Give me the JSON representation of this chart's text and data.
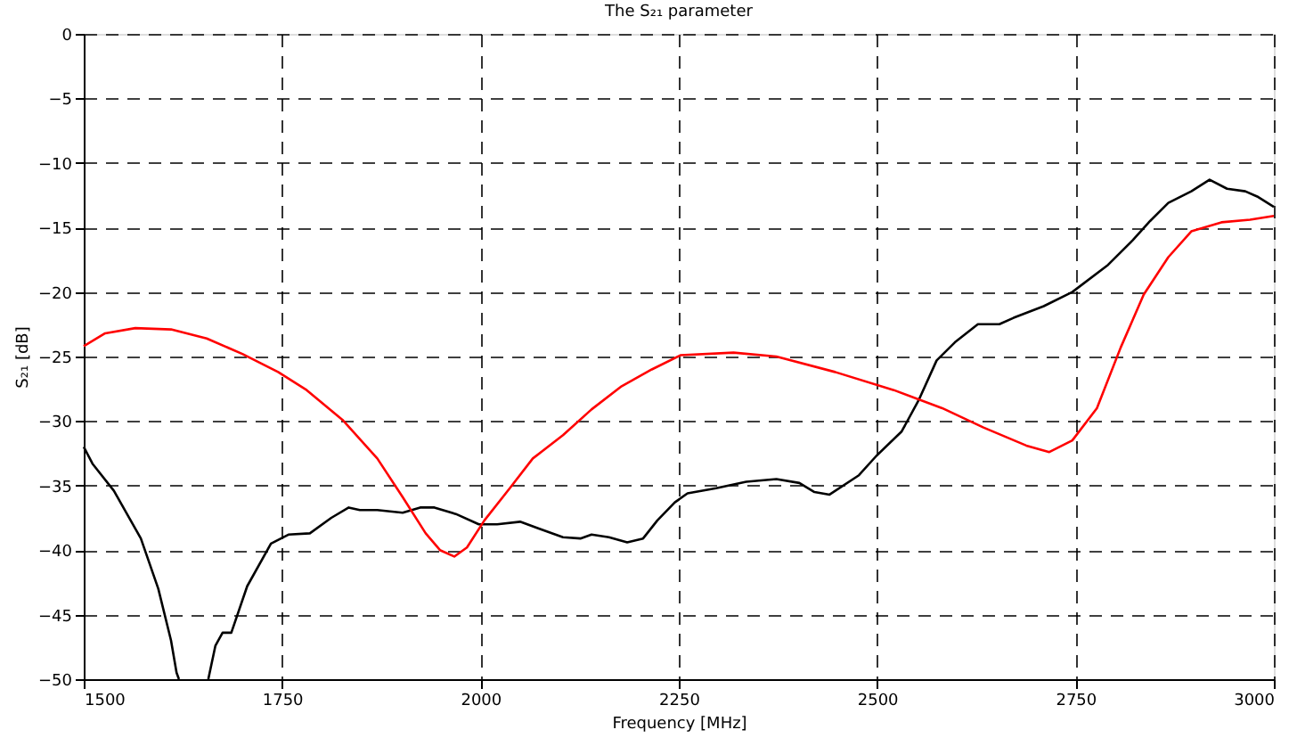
{
  "chart_data": {
    "type": "line",
    "title": "The S₂₁ parameter",
    "xlabel": "Frequency [MHz]",
    "ylabel": "S₂₁ [dB]",
    "xlim": [
      1500,
      3000
    ],
    "xticks": [
      1500,
      1750,
      2000,
      2250,
      2500,
      2750,
      3000
    ],
    "ylim": [
      -50,
      0
    ],
    "yticks": [
      -50,
      -45,
      -40,
      -35,
      -30,
      -25,
      -20,
      -15,
      -10,
      -5,
      0
    ],
    "grid": true,
    "line_style": "solid",
    "marker": "none",
    "series": [
      {
        "color": "#000000",
        "x": [
          1500,
          1511,
          1538,
          1572,
          1594,
          1610,
          1617,
          1620,
          1640,
          1657,
          1666,
          1675,
          1686,
          1706,
          1736,
          1758,
          1785,
          1812,
          1834,
          1848,
          1870,
          1902,
          1924,
          1942,
          1969,
          1998,
          2021,
          2050,
          2072,
          2104,
          2126,
          2140,
          2162,
          2185,
          2205,
          2223,
          2245,
          2261,
          2297,
          2335,
          2373,
          2402,
          2421,
          2440,
          2477,
          2499,
          2531,
          2553,
          2575,
          2598,
          2627,
          2654,
          2672,
          2710,
          2746,
          2791,
          2822,
          2844,
          2867,
          2896,
          2919,
          2941,
          2964,
          2979,
          3000
        ],
        "values": [
          -32,
          -33.3,
          -35.4,
          -39.1,
          -43,
          -47,
          -49.5,
          -50,
          null,
          -50,
          -47.4,
          -46.4,
          -46.4,
          -42.8,
          -39.5,
          -38.8,
          -38.7,
          -37.5,
          -36.7,
          -36.9,
          -36.9,
          -37.1,
          -36.7,
          -36.7,
          -37.2,
          -38,
          -38,
          -37.8,
          -38.3,
          -39,
          -39.1,
          -38.8,
          -39,
          -39.4,
          -39.1,
          -37.7,
          -36.3,
          -35.6,
          -35.2,
          -34.7,
          -34.5,
          -34.8,
          -35.5,
          -35.7,
          -34.2,
          -32.7,
          -30.8,
          -28.3,
          -25.3,
          -23.9,
          -22.5,
          -22.5,
          -22,
          -21.1,
          -20,
          -17.9,
          -16,
          -14.5,
          -13.1,
          -12.2,
          -11.3,
          -12,
          -12.2,
          -12.6,
          -13.4
        ]
      },
      {
        "color": "#ff0000",
        "x": [
          1500,
          1527,
          1565,
          1610,
          1655,
          1700,
          1745,
          1781,
          1826,
          1870,
          1902,
          1931,
          1949,
          1967,
          1983,
          2005,
          2037,
          2066,
          2104,
          2140,
          2178,
          2216,
          2252,
          2319,
          2373,
          2447,
          2521,
          2582,
          2634,
          2688,
          2717,
          2746,
          2777,
          2807,
          2836,
          2867,
          2896,
          2934,
          2970,
          3000
        ],
        "values": [
          -24.2,
          -23.2,
          -22.8,
          -22.9,
          -23.6,
          -24.8,
          -26.2,
          -27.6,
          -29.9,
          -32.9,
          -35.9,
          -38.7,
          -40,
          -40.5,
          -39.8,
          -37.7,
          -35.2,
          -32.9,
          -31.1,
          -29.1,
          -27.3,
          -26,
          -24.9,
          -24.7,
          -25,
          -26.2,
          -27.6,
          -29,
          -30.5,
          -31.9,
          -32.4,
          -31.5,
          -29,
          -24.3,
          -20.2,
          -17.3,
          -15.3,
          -14.6,
          -14.4,
          -14.1
        ]
      }
    ]
  }
}
